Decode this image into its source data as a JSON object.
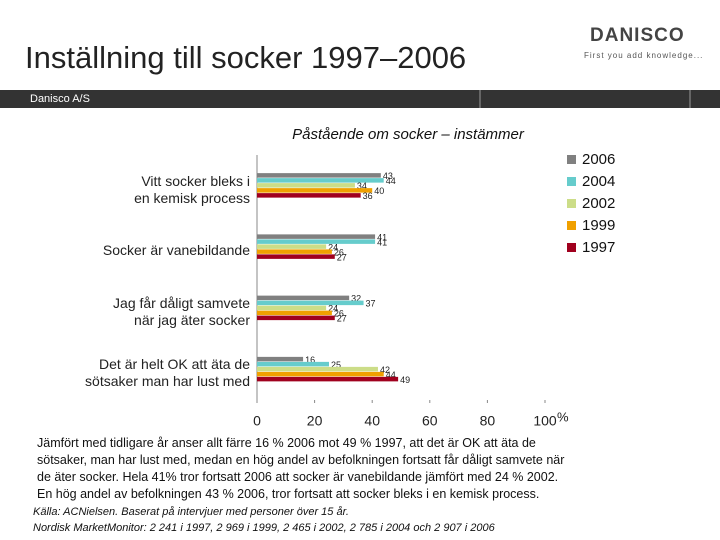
{
  "header": {
    "title": "Inställning till socker 1997–2006",
    "logo": "DANISCO",
    "tagline": "First you add knowledge...",
    "company": "Danisco A/S"
  },
  "chart_data": {
    "type": "hbar",
    "title": "Påstående om socker – instämmer",
    "categories": [
      "Vitt socker bleks i\nen kemisk process",
      "Socker är vanebildande",
      "Jag får dåligt samvete\nnär jag äter socker",
      "Det är helt OK att äta de\nsötsaker man har lust med"
    ],
    "series": [
      {
        "name": "2006",
        "color": "#808080",
        "values": [
          43,
          41,
          32,
          16
        ]
      },
      {
        "name": "2004",
        "color": "#66cccc",
        "values": [
          44,
          41,
          37,
          25
        ]
      },
      {
        "name": "2002",
        "color": "#ccdd88",
        "values": [
          34,
          24,
          24,
          42
        ]
      },
      {
        "name": "1999",
        "color": "#f0a000",
        "values": [
          40,
          26,
          26,
          44
        ]
      },
      {
        "name": "1997",
        "color": "#a0001e",
        "values": [
          36,
          27,
          27,
          49
        ]
      }
    ],
    "xlim": [
      0,
      100
    ],
    "xticks": [
      0,
      20,
      40,
      60,
      80,
      100
    ],
    "xlabel": "%",
    "legend": "upper right"
  },
  "text_lines": [
    "Jämfört med tidligare år anser allt färre 16 % 2006 mot 49 % 1997, att det är OK att äta de",
    "sötsaker, man har lust med, medan en hög andel av befolkningen fortsatt får dåligt samvete när",
    "de äter socker. Hela 41% tror fortsatt 2006 att socker är vanebildande jämfört med  24 % 2002.",
    "En hög andel av befolkningen 43 % 2006, tror fortsatt att socker bleks i en kemisk process."
  ],
  "source": [
    "Källa: ACNielsen. Baserat på intervjuer med personer över 15 år.",
    "Nordisk MarketMonitor: 2 241 i 1997, 2 969 i 1999, 2 465 i 2002, 2 785 i 2004 och 2 907 i 2006"
  ]
}
